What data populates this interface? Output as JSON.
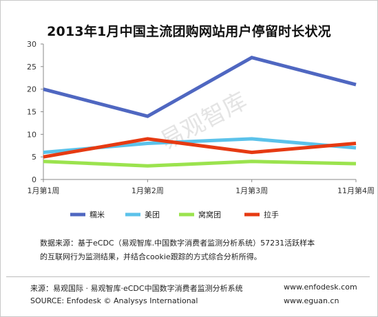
{
  "chart_data": {
    "type": "line",
    "title": "2013年1月中国主流团购网站用户停留时长状况",
    "categories": [
      "1月第1周",
      "1月第2周",
      "1月第3周",
      "11月第4周"
    ],
    "ylim": [
      0,
      30
    ],
    "yticks": [
      "30",
      "25",
      "20",
      "15",
      "10",
      "5",
      "0"
    ],
    "grid": false,
    "legend_position": "bottom",
    "series": [
      {
        "name": "糯米",
        "color": "#4f67c1",
        "values": [
          20,
          14,
          27,
          21
        ]
      },
      {
        "name": "美团",
        "color": "#5bc2ea",
        "values": [
          6,
          8,
          9,
          7
        ]
      },
      {
        "name": "窝窝团",
        "color": "#9be34e",
        "values": [
          4,
          3,
          4,
          3.5
        ]
      },
      {
        "name": "拉手",
        "color": "#e63a12",
        "values": [
          5,
          9,
          6,
          8
        ]
      }
    ],
    "watermark": "易观智库"
  },
  "note": {
    "line1": "数据来源：基于eCDC（易观智库.中国数字消费者监测分析系统）57231活跃样本",
    "line2": "的互联网行为监测结果，并结合cookie跟踪的方式综合分析所得。"
  },
  "footer": {
    "source_cn": "来源：易观国际 · 易观智库·eCDC中国数字消费者监测分析系统",
    "source_en": "SOURCE: Enfodesk © Analysys International",
    "url1": "www.enfodesk.com",
    "url2": "www.eguan.cn"
  }
}
